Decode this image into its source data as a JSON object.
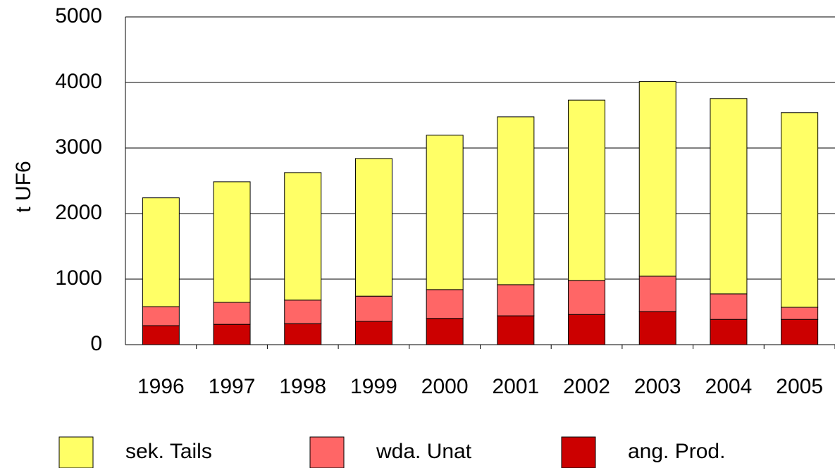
{
  "chart_data": {
    "type": "stacked_bar",
    "y_label": "t UF6",
    "categories": [
      "1996",
      "1997",
      "1998",
      "1999",
      "2000",
      "2001",
      "2002",
      "2003",
      "2004",
      "2005"
    ],
    "series": [
      {
        "name": "sek. Tails",
        "color": "#ffff66",
        "values": [
          1660,
          1840,
          1945,
          2100,
          2355,
          2560,
          2750,
          2970,
          2980,
          2970
        ]
      },
      {
        "name": "wda. Unat",
        "color": "#ff6666",
        "values": [
          290,
          335,
          360,
          385,
          440,
          475,
          520,
          540,
          390,
          185
        ]
      },
      {
        "name": "ang. Prod.",
        "color": "#cc0000",
        "values": [
          290,
          310,
          320,
          355,
          400,
          440,
          460,
          505,
          385,
          385
        ]
      }
    ],
    "ylim": [
      0,
      5000
    ],
    "yticks": [
      0,
      1000,
      2000,
      3000,
      4000,
      5000
    ],
    "grid": true
  }
}
